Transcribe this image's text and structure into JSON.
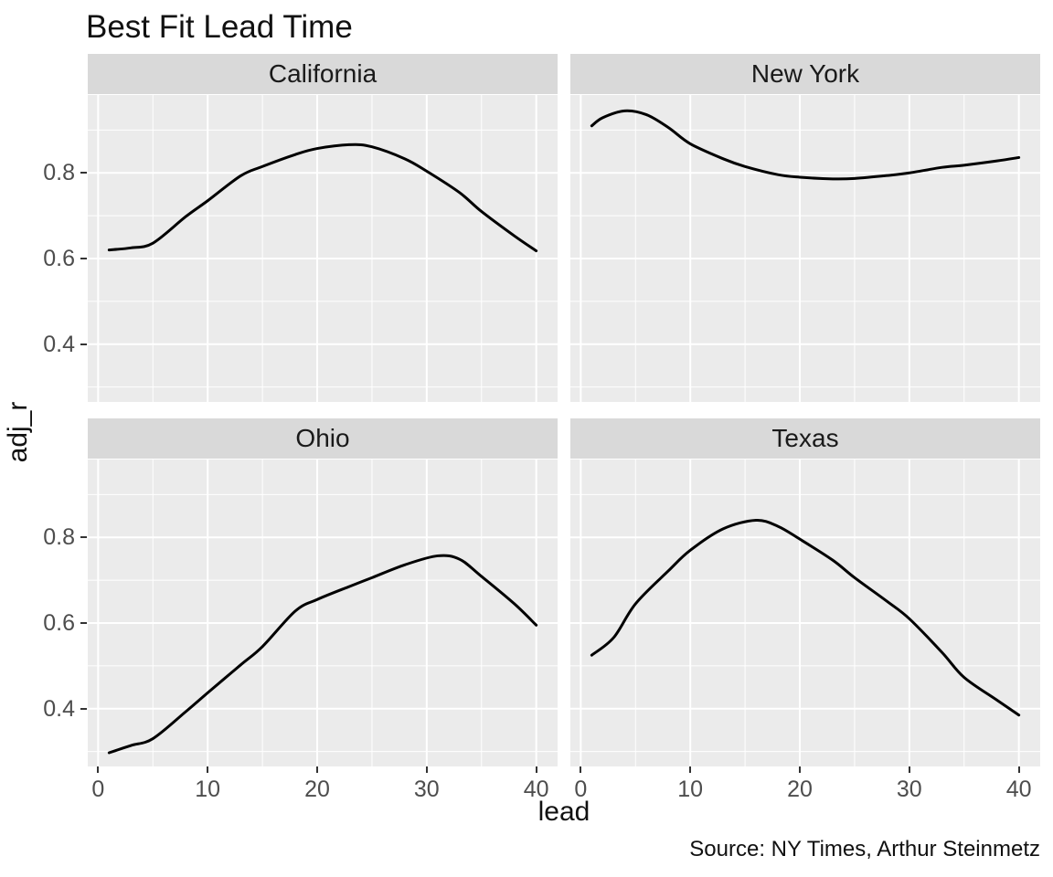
{
  "chart_data": {
    "type": "line",
    "title": "Best Fit Lead Time",
    "xlabel": "lead",
    "ylabel": "adj_r",
    "caption": "Source: NY Times, Arthur Steinmetz",
    "grid": true,
    "legend_position": "none",
    "line_color": "#000000",
    "panel_bg": "#ebebeb",
    "strip_bg": "#d9d9d9",
    "gridline_color": "#ffffff",
    "x_axis": {
      "label": "lead",
      "ticks": [
        0,
        10,
        20,
        30,
        40
      ],
      "tick_labels": [
        "0",
        "10",
        "20",
        "30",
        "40"
      ],
      "minor_ticks": [
        5,
        15,
        25,
        35
      ],
      "range": [
        -0.95,
        41.95
      ]
    },
    "y_axis": {
      "label": "adj_r",
      "ticks": [
        0.4,
        0.6,
        0.8
      ],
      "tick_labels": [
        "0.4",
        "0.6",
        "0.8"
      ],
      "minor_ticks": [
        0.3,
        0.5,
        0.7,
        0.9
      ],
      "range": [
        0.265,
        0.982
      ]
    },
    "facets": [
      {
        "label": "California",
        "points": [
          [
            1,
            0.62
          ],
          [
            3,
            0.625
          ],
          [
            5,
            0.636
          ],
          [
            8,
            0.698
          ],
          [
            10,
            0.735
          ],
          [
            13,
            0.793
          ],
          [
            15,
            0.815
          ],
          [
            18,
            0.843
          ],
          [
            20,
            0.857
          ],
          [
            23,
            0.866
          ],
          [
            25,
            0.861
          ],
          [
            28,
            0.833
          ],
          [
            30,
            0.804
          ],
          [
            33,
            0.754
          ],
          [
            35,
            0.71
          ],
          [
            38,
            0.653
          ],
          [
            40,
            0.618
          ]
        ]
      },
      {
        "label": "New York",
        "points": [
          [
            1,
            0.91
          ],
          [
            2,
            0.929
          ],
          [
            4,
            0.945
          ],
          [
            6,
            0.936
          ],
          [
            8,
            0.906
          ],
          [
            10,
            0.868
          ],
          [
            13,
            0.833
          ],
          [
            15,
            0.815
          ],
          [
            18,
            0.796
          ],
          [
            20,
            0.79
          ],
          [
            23,
            0.786
          ],
          [
            25,
            0.787
          ],
          [
            28,
            0.794
          ],
          [
            30,
            0.8
          ],
          [
            33,
            0.813
          ],
          [
            35,
            0.818
          ],
          [
            38,
            0.828
          ],
          [
            40,
            0.836
          ]
        ]
      },
      {
        "label": "Ohio",
        "points": [
          [
            1,
            0.297
          ],
          [
            3,
            0.314
          ],
          [
            5,
            0.33
          ],
          [
            8,
            0.393
          ],
          [
            10,
            0.437
          ],
          [
            13,
            0.502
          ],
          [
            15,
            0.545
          ],
          [
            18,
            0.628
          ],
          [
            20,
            0.655
          ],
          [
            23,
            0.686
          ],
          [
            25,
            0.706
          ],
          [
            28,
            0.736
          ],
          [
            31,
            0.757
          ],
          [
            33,
            0.749
          ],
          [
            35,
            0.709
          ],
          [
            38,
            0.645
          ],
          [
            40,
            0.595
          ]
        ]
      },
      {
        "label": "Texas",
        "points": [
          [
            1,
            0.525
          ],
          [
            3,
            0.566
          ],
          [
            5,
            0.645
          ],
          [
            8,
            0.722
          ],
          [
            10,
            0.77
          ],
          [
            13,
            0.82
          ],
          [
            16,
            0.84
          ],
          [
            18,
            0.826
          ],
          [
            20,
            0.796
          ],
          [
            23,
            0.747
          ],
          [
            25,
            0.706
          ],
          [
            28,
            0.65
          ],
          [
            30,
            0.61
          ],
          [
            33,
            0.531
          ],
          [
            35,
            0.473
          ],
          [
            38,
            0.42
          ],
          [
            40,
            0.385
          ]
        ]
      }
    ]
  }
}
